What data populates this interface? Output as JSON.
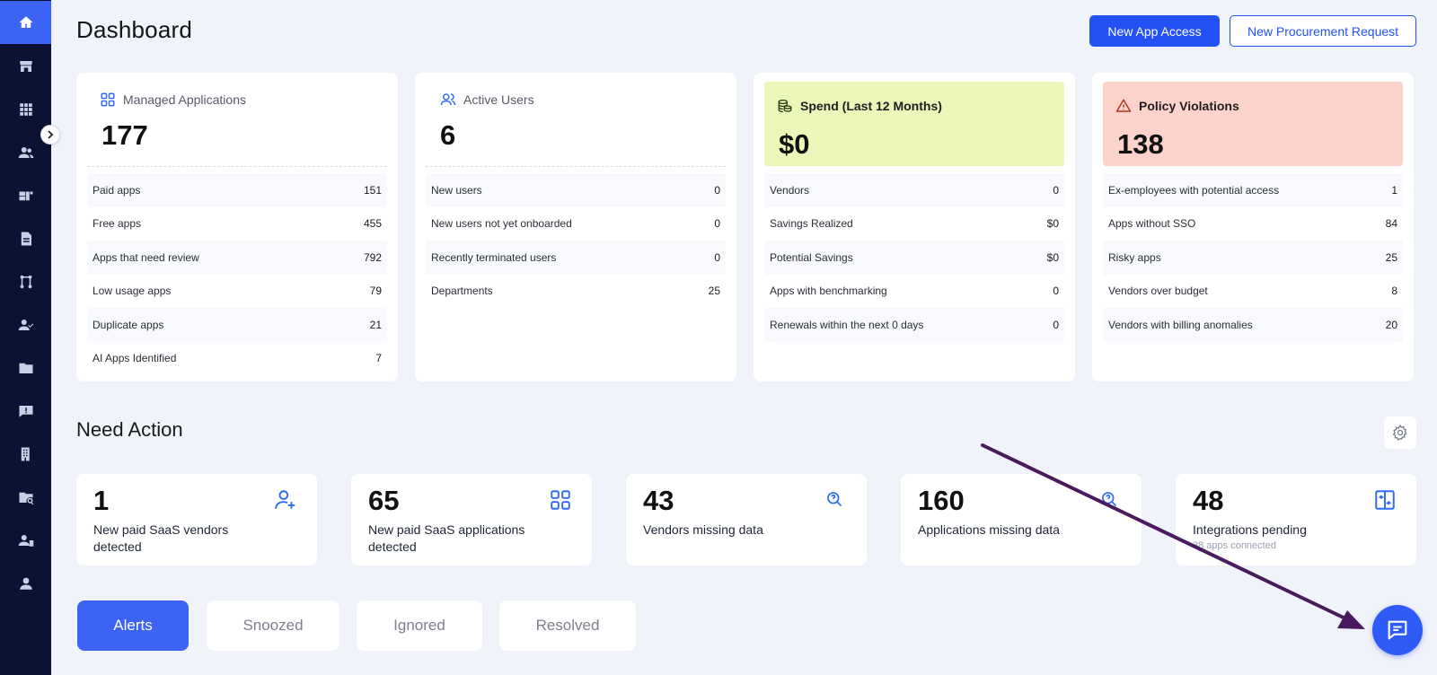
{
  "colors": {
    "primary": "#2451f5",
    "sidebar": "#0c1233",
    "spend_bg": "#eaf7b9",
    "violations_bg": "#fbd3cb",
    "annotation_arrow": "#4a1a5e"
  },
  "sidebar": {
    "items": [
      {
        "icon": "home-icon"
      },
      {
        "icon": "store-icon"
      },
      {
        "icon": "apps-grid-icon"
      },
      {
        "icon": "users-icon"
      },
      {
        "icon": "widgets-icon"
      },
      {
        "icon": "document-icon"
      },
      {
        "icon": "workflow-icon"
      },
      {
        "icon": "user-check-icon"
      },
      {
        "icon": "folder-icon"
      },
      {
        "icon": "feedback-icon"
      },
      {
        "icon": "building-icon"
      },
      {
        "icon": "folder-search-icon"
      },
      {
        "icon": "user-card-icon"
      },
      {
        "icon": "account-icon"
      }
    ]
  },
  "header": {
    "title": "Dashboard",
    "new_app_access": "New App Access",
    "new_procurement": "New Procurement Request"
  },
  "cards": {
    "managed": {
      "title": "Managed Applications",
      "value": "177",
      "rows": [
        {
          "label": "Paid apps",
          "value": "151"
        },
        {
          "label": "Free apps",
          "value": "455"
        },
        {
          "label": "Apps that need review",
          "value": "792"
        },
        {
          "label": "Low usage apps",
          "value": "79"
        },
        {
          "label": "Duplicate apps",
          "value": "21"
        },
        {
          "label": "AI Apps Identified",
          "value": "7"
        }
      ]
    },
    "users": {
      "title": "Active Users",
      "value": "6",
      "rows": [
        {
          "label": "New users",
          "value": "0"
        },
        {
          "label": "New users not yet onboarded",
          "value": "0"
        },
        {
          "label": "Recently terminated users",
          "value": "0"
        },
        {
          "label": "Departments",
          "value": "25"
        }
      ]
    },
    "spend": {
      "title": "Spend (Last 12 Months)",
      "value": "$0",
      "rows": [
        {
          "label": "Vendors",
          "value": "0"
        },
        {
          "label": "Savings Realized",
          "value": "$0"
        },
        {
          "label": "Potential Savings",
          "value": "$0"
        },
        {
          "label": "Apps with benchmarking",
          "value": "0"
        },
        {
          "label": "Renewals within the next 0 days",
          "value": "0"
        }
      ]
    },
    "violations": {
      "title": "Policy Violations",
      "value": "138",
      "rows": [
        {
          "label": "Ex-employees with potential access",
          "value": "1"
        },
        {
          "label": "Apps without SSO",
          "value": "84"
        },
        {
          "label": "Risky apps",
          "value": "25"
        },
        {
          "label": "Vendors over budget",
          "value": "8"
        },
        {
          "label": "Vendors with billing anomalies",
          "value": "20"
        }
      ]
    }
  },
  "need_action": {
    "title": "Need Action",
    "items": [
      {
        "value": "1",
        "label": "New paid SaaS vendors detected",
        "icon": "user-add-icon"
      },
      {
        "value": "65",
        "label": "New paid SaaS applications detected",
        "icon": "apps-grid-icon"
      },
      {
        "value": "43",
        "label": "Vendors missing data",
        "icon": "search-question-icon"
      },
      {
        "value": "160",
        "label": "Applications missing data",
        "icon": "search-question-icon"
      },
      {
        "value": "48",
        "label": "Integrations pending",
        "sub": "38 apps connected",
        "icon": "integration-icon"
      }
    ]
  },
  "tabs": [
    {
      "label": "Alerts",
      "active": true
    },
    {
      "label": "Snoozed",
      "active": false
    },
    {
      "label": "Ignored",
      "active": false
    },
    {
      "label": "Resolved",
      "active": false
    }
  ],
  "chat": {
    "icon": "chat-icon"
  }
}
